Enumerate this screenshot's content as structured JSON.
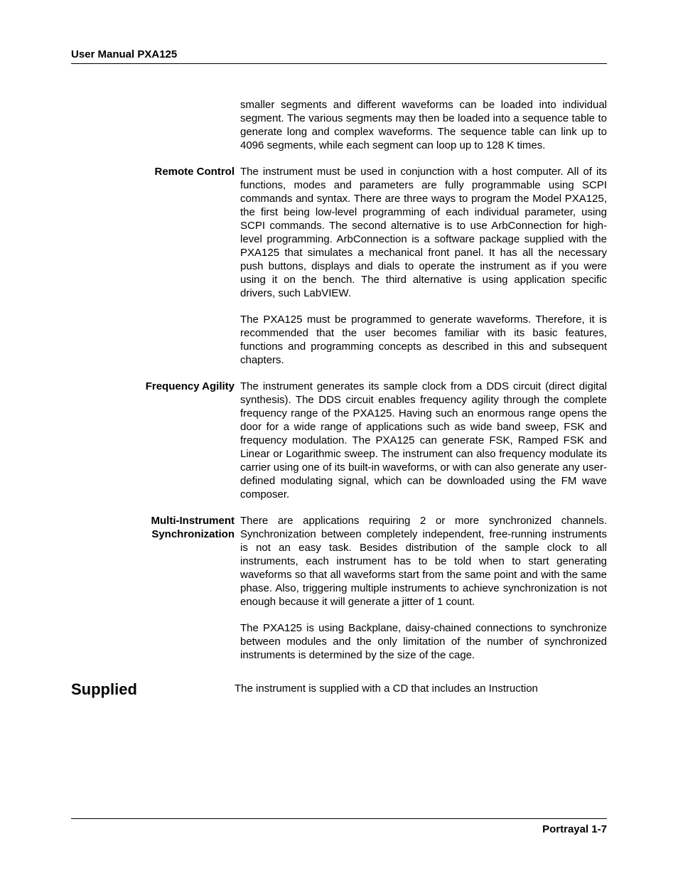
{
  "header": {
    "title": "User Manual PXA125"
  },
  "sections": {
    "intro_continuation": {
      "label": "",
      "paragraphs": [
        "smaller segments and different waveforms can be loaded into individual segment. The various segments may then be loaded into a sequence table to generate long and complex waveforms. The sequence table can link up to 4096 segments, while each segment can loop up to 128 K times."
      ]
    },
    "remote_control": {
      "label": "Remote Control",
      "paragraphs": [
        "The instrument must be used in conjunction with a host computer. All of its functions, modes and parameters are fully programmable using SCPI commands and syntax. There are three ways to program the Model PXA125, the first being low-level programming of each individual parameter, using SCPI commands. The second alternative is to use ArbConnection for high-level programming. ArbConnection is a software package supplied with the PXA125 that simulates a mechanical front panel. It has all the necessary push buttons, displays and dials to operate the instrument as if you were using it on the bench. The third alternative is using application specific drivers, such LabVIEW.",
        "The PXA125 must be programmed to generate waveforms. Therefore, it is recommended that the user becomes familiar with its basic features, functions and programming concepts as described in this and subsequent chapters."
      ]
    },
    "frequency_agility": {
      "label": "Frequency Agility",
      "paragraphs": [
        "The instrument generates its sample clock from a DDS circuit (direct digital synthesis). The DDS circuit enables frequency agility through the complete frequency range of the PXA125. Having such an enormous range opens the door for a wide range of applications such as wide band sweep, FSK and frequency modulation. The PXA125 can generate FSK, Ramped FSK and Linear or Logarithmic sweep. The instrument can also frequency modulate its carrier using one of its built-in waveforms, or with can also generate any user-defined modulating signal, which can be downloaded using the FM wave composer."
      ]
    },
    "multi_instrument": {
      "label_line1": "Multi-Instrument",
      "label_line2": "Synchronization",
      "paragraphs": [
        "There are applications requiring 2 or more synchronized channels. Synchronization between completely independent, free-running instruments is not an easy task. Besides distribution of the sample clock to all instruments, each instrument has to be told when to start generating waveforms so that all waveforms start from the same point and with the same phase. Also, triggering multiple instruments to achieve synchronization is not enough because it will generate a jitter of  1 count.",
        "The PXA125 is using Backplane, daisy-chained connections to synchronize between modules and the only limitation of the number of synchronized instruments is determined by the size of the cage."
      ]
    },
    "supplied": {
      "label": "Supplied",
      "paragraphs": [
        "The instrument is supplied with a CD that includes an Instruction"
      ]
    }
  },
  "footer": {
    "text": "Portrayal 1-7"
  }
}
